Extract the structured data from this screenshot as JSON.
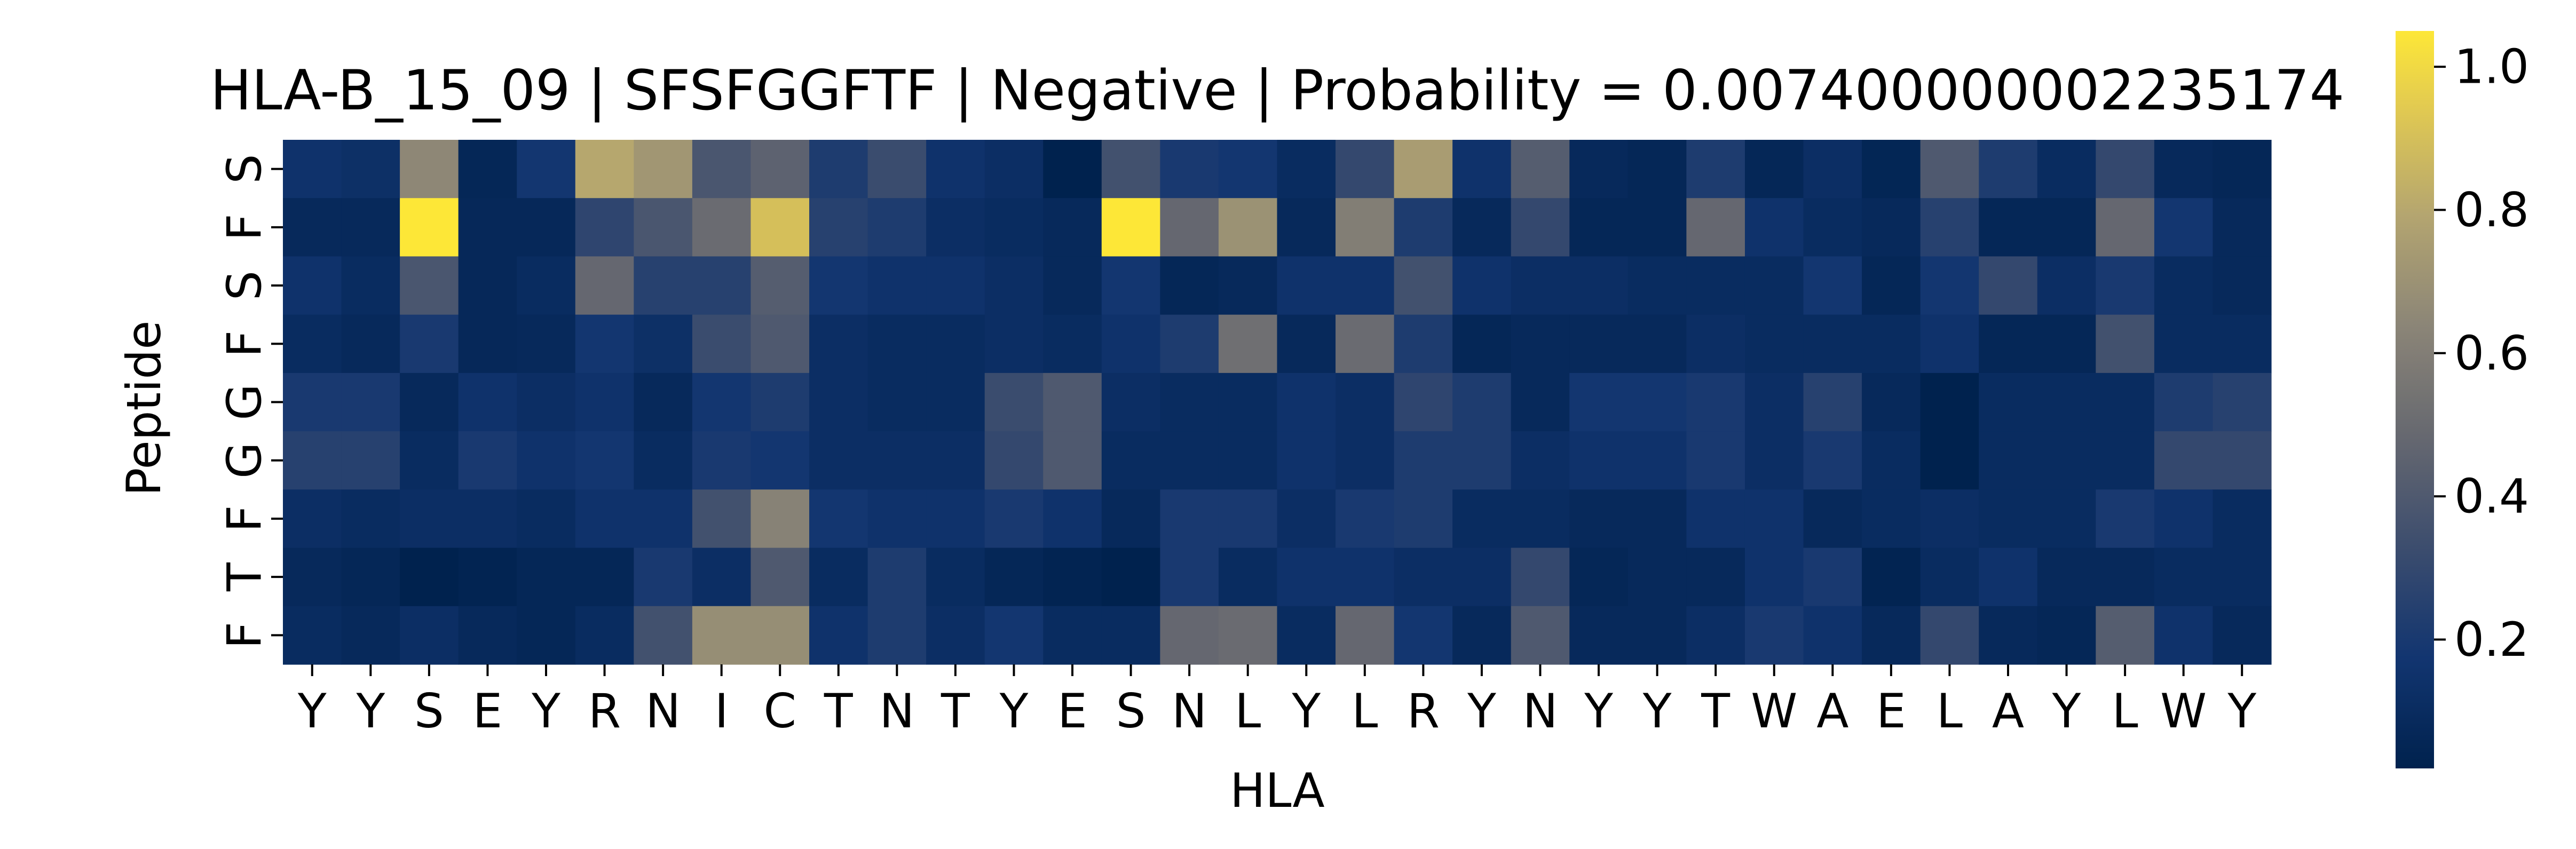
{
  "chart_data": {
    "type": "heatmap",
    "title": "HLA-B_15_09 | SFSFGGFTF | Negative | Probability = 0.007400000002235174",
    "xlabel": "HLA",
    "ylabel": "Peptide",
    "x_ticks": [
      "Y",
      "Y",
      "S",
      "E",
      "Y",
      "R",
      "N",
      "I",
      "C",
      "T",
      "N",
      "T",
      "Y",
      "E",
      "S",
      "N",
      "L",
      "Y",
      "L",
      "R",
      "Y",
      "N",
      "Y",
      "Y",
      "T",
      "W",
      "A",
      "E",
      "L",
      "A",
      "Y",
      "L",
      "W",
      "Y"
    ],
    "y_ticks": [
      "S",
      "F",
      "S",
      "F",
      "G",
      "G",
      "F",
      "T",
      "F"
    ],
    "colormap": "cividis",
    "colorbar_range": [
      0.02,
      1.05
    ],
    "colorbar_ticks": [
      0.2,
      0.4,
      0.6,
      0.8,
      1.0
    ],
    "colorbar_tick_labels": [
      "0.2",
      "0.4",
      "0.6",
      "0.8",
      "1.0"
    ],
    "values": [
      [
        0.15,
        0.13,
        0.65,
        0.06,
        0.18,
        0.8,
        0.72,
        0.38,
        0.45,
        0.22,
        0.32,
        0.15,
        0.12,
        0.02,
        0.35,
        0.2,
        0.18,
        0.1,
        0.3,
        0.75,
        0.15,
        0.42,
        0.08,
        0.06,
        0.22,
        0.06,
        0.12,
        0.05,
        0.4,
        0.22,
        0.1,
        0.3,
        0.08,
        0.06
      ],
      [
        0.08,
        0.08,
        1.05,
        0.07,
        0.07,
        0.28,
        0.38,
        0.5,
        0.9,
        0.25,
        0.22,
        0.12,
        0.1,
        0.08,
        1.05,
        0.48,
        0.7,
        0.08,
        0.6,
        0.22,
        0.08,
        0.3,
        0.06,
        0.06,
        0.48,
        0.15,
        0.1,
        0.08,
        0.25,
        0.06,
        0.06,
        0.48,
        0.18,
        0.08
      ],
      [
        0.15,
        0.1,
        0.38,
        0.07,
        0.1,
        0.48,
        0.25,
        0.25,
        0.42,
        0.18,
        0.15,
        0.15,
        0.12,
        0.08,
        0.18,
        0.06,
        0.08,
        0.15,
        0.15,
        0.35,
        0.15,
        0.12,
        0.12,
        0.1,
        0.1,
        0.1,
        0.18,
        0.06,
        0.18,
        0.3,
        0.12,
        0.2,
        0.1,
        0.08
      ],
      [
        0.1,
        0.08,
        0.2,
        0.07,
        0.08,
        0.18,
        0.13,
        0.32,
        0.4,
        0.12,
        0.1,
        0.1,
        0.12,
        0.1,
        0.15,
        0.22,
        0.52,
        0.08,
        0.5,
        0.22,
        0.06,
        0.08,
        0.08,
        0.08,
        0.12,
        0.1,
        0.1,
        0.1,
        0.15,
        0.06,
        0.06,
        0.35,
        0.1,
        0.1
      ],
      [
        0.2,
        0.2,
        0.08,
        0.15,
        0.12,
        0.15,
        0.08,
        0.18,
        0.22,
        0.12,
        0.1,
        0.1,
        0.32,
        0.4,
        0.12,
        0.1,
        0.1,
        0.15,
        0.12,
        0.28,
        0.22,
        0.08,
        0.18,
        0.18,
        0.2,
        0.12,
        0.25,
        0.08,
        0.02,
        0.1,
        0.1,
        0.1,
        0.22,
        0.25
      ],
      [
        0.25,
        0.25,
        0.1,
        0.2,
        0.15,
        0.18,
        0.1,
        0.2,
        0.18,
        0.12,
        0.12,
        0.12,
        0.3,
        0.4,
        0.1,
        0.1,
        0.1,
        0.15,
        0.12,
        0.22,
        0.22,
        0.12,
        0.15,
        0.15,
        0.2,
        0.12,
        0.2,
        0.1,
        0.02,
        0.1,
        0.1,
        0.1,
        0.3,
        0.3
      ],
      [
        0.12,
        0.1,
        0.12,
        0.12,
        0.1,
        0.15,
        0.15,
        0.35,
        0.62,
        0.18,
        0.15,
        0.15,
        0.2,
        0.15,
        0.08,
        0.2,
        0.2,
        0.12,
        0.2,
        0.22,
        0.1,
        0.1,
        0.08,
        0.08,
        0.15,
        0.15,
        0.08,
        0.1,
        0.12,
        0.1,
        0.1,
        0.2,
        0.15,
        0.1
      ],
      [
        0.08,
        0.06,
        0.02,
        0.04,
        0.06,
        0.06,
        0.2,
        0.12,
        0.4,
        0.1,
        0.22,
        0.1,
        0.06,
        0.04,
        0.01,
        0.2,
        0.1,
        0.15,
        0.15,
        0.12,
        0.12,
        0.3,
        0.06,
        0.08,
        0.08,
        0.15,
        0.2,
        0.04,
        0.1,
        0.15,
        0.08,
        0.08,
        0.1,
        0.1
      ],
      [
        0.1,
        0.08,
        0.12,
        0.08,
        0.06,
        0.1,
        0.35,
        0.68,
        0.68,
        0.15,
        0.22,
        0.12,
        0.18,
        0.1,
        0.1,
        0.48,
        0.5,
        0.1,
        0.48,
        0.18,
        0.08,
        0.4,
        0.08,
        0.08,
        0.12,
        0.2,
        0.15,
        0.08,
        0.3,
        0.08,
        0.06,
        0.42,
        0.15,
        0.08
      ]
    ]
  }
}
